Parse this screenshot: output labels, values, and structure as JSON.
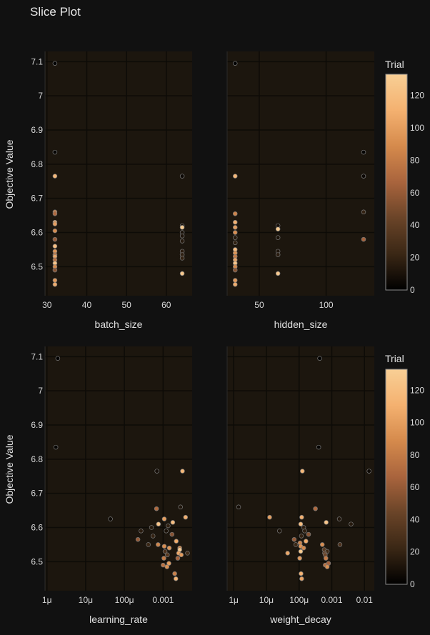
{
  "title": "Slice Plot",
  "y_axis_label": "Objective Value",
  "colorbar": {
    "title": "Trial",
    "range": [
      0,
      133
    ],
    "ticks": [
      0,
      20,
      40,
      60,
      80,
      100,
      120
    ],
    "colorscale": [
      "#000000",
      "#3a2715",
      "#6a4428",
      "#a9643d",
      "#d58a4c",
      "#f4b170",
      "#f8cf95"
    ]
  },
  "chart_data": [
    {
      "type": "scatter",
      "xlabel": "batch_size",
      "ylabel": "Objective Value",
      "xscale": "linear",
      "xlim": [
        29.5,
        66.5
      ],
      "ylim": [
        6.415,
        7.13
      ],
      "xticks": [
        {
          "v": 30,
          "label": "30"
        },
        {
          "v": 40,
          "label": "40"
        },
        {
          "v": 50,
          "label": "50"
        },
        {
          "v": 60,
          "label": "60"
        }
      ],
      "yticks": [
        {
          "v": 6.5,
          "label": "6.5"
        },
        {
          "v": 6.6,
          "label": "6.6"
        },
        {
          "v": 6.7,
          "label": "6.7"
        },
        {
          "v": 6.8,
          "label": "6.8"
        },
        {
          "v": 6.9,
          "label": "6.9"
        },
        {
          "v": 7.0,
          "label": "7"
        },
        {
          "v": 7.1,
          "label": "7.1"
        }
      ],
      "points": [
        {
          "x": 32,
          "y": 7.095,
          "t": 0
        },
        {
          "x": 32,
          "y": 6.835,
          "t": 2
        },
        {
          "x": 32,
          "y": 6.765,
          "t": 115
        },
        {
          "x": 32,
          "y": 6.66,
          "t": 85
        },
        {
          "x": 32,
          "y": 6.655,
          "t": 70
        },
        {
          "x": 32,
          "y": 6.63,
          "t": 110
        },
        {
          "x": 32,
          "y": 6.625,
          "t": 100
        },
        {
          "x": 32,
          "y": 6.605,
          "t": 90
        },
        {
          "x": 32,
          "y": 6.58,
          "t": 60
        },
        {
          "x": 32,
          "y": 6.56,
          "t": 120
        },
        {
          "x": 32,
          "y": 6.545,
          "t": 95
        },
        {
          "x": 32,
          "y": 6.535,
          "t": 80
        },
        {
          "x": 32,
          "y": 6.53,
          "t": 105
        },
        {
          "x": 32,
          "y": 6.52,
          "t": 75
        },
        {
          "x": 32,
          "y": 6.51,
          "t": 125
        },
        {
          "x": 32,
          "y": 6.5,
          "t": 88
        },
        {
          "x": 32,
          "y": 6.49,
          "t": 55
        },
        {
          "x": 32,
          "y": 6.46,
          "t": 98
        },
        {
          "x": 32,
          "y": 6.448,
          "t": 108
        },
        {
          "x": 64,
          "y": 6.765,
          "t": 5
        },
        {
          "x": 64,
          "y": 6.62,
          "t": 8
        },
        {
          "x": 64,
          "y": 6.615,
          "t": 130
        },
        {
          "x": 64,
          "y": 6.6,
          "t": 10
        },
        {
          "x": 64,
          "y": 6.59,
          "t": 12
        },
        {
          "x": 64,
          "y": 6.575,
          "t": 14
        },
        {
          "x": 64,
          "y": 6.545,
          "t": 16
        },
        {
          "x": 64,
          "y": 6.535,
          "t": 18
        },
        {
          "x": 64,
          "y": 6.525,
          "t": 20
        },
        {
          "x": 64,
          "y": 6.48,
          "t": 128
        }
      ]
    },
    {
      "type": "scatter",
      "xlabel": "hidden_size",
      "ylabel": "Objective Value",
      "xscale": "linear",
      "xlim": [
        26,
        136
      ],
      "ylim": [
        6.415,
        7.13
      ],
      "xticks": [
        {
          "v": 50,
          "label": "50"
        },
        {
          "v": 100,
          "label": "100"
        }
      ],
      "yticks": [],
      "points": [
        {
          "x": 32,
          "y": 7.095,
          "t": 0
        },
        {
          "x": 32,
          "y": 6.765,
          "t": 115
        },
        {
          "x": 32,
          "y": 6.655,
          "t": 85
        },
        {
          "x": 32,
          "y": 6.63,
          "t": 110
        },
        {
          "x": 32,
          "y": 6.615,
          "t": 100
        },
        {
          "x": 32,
          "y": 6.6,
          "t": 90
        },
        {
          "x": 32,
          "y": 6.585,
          "t": 14
        },
        {
          "x": 32,
          "y": 6.57,
          "t": 18
        },
        {
          "x": 32,
          "y": 6.55,
          "t": 120
        },
        {
          "x": 32,
          "y": 6.54,
          "t": 95
        },
        {
          "x": 32,
          "y": 6.53,
          "t": 80
        },
        {
          "x": 32,
          "y": 6.52,
          "t": 105
        },
        {
          "x": 32,
          "y": 6.51,
          "t": 125
        },
        {
          "x": 32,
          "y": 6.5,
          "t": 88
        },
        {
          "x": 32,
          "y": 6.49,
          "t": 55
        },
        {
          "x": 32,
          "y": 6.46,
          "t": 98
        },
        {
          "x": 32,
          "y": 6.448,
          "t": 108
        },
        {
          "x": 64,
          "y": 6.62,
          "t": 8
        },
        {
          "x": 64,
          "y": 6.61,
          "t": 130
        },
        {
          "x": 64,
          "y": 6.585,
          "t": 10
        },
        {
          "x": 64,
          "y": 6.545,
          "t": 12
        },
        {
          "x": 64,
          "y": 6.535,
          "t": 16
        },
        {
          "x": 64,
          "y": 6.48,
          "t": 128
        },
        {
          "x": 128,
          "y": 6.835,
          "t": 2
        },
        {
          "x": 128,
          "y": 6.765,
          "t": 5
        },
        {
          "x": 128,
          "y": 6.66,
          "t": 20
        },
        {
          "x": 128,
          "y": 6.58,
          "t": 65
        }
      ]
    },
    {
      "type": "scatter",
      "xlabel": "learning_rate",
      "ylabel": "Objective Value",
      "xscale": "log",
      "xlim": [
        -6.05,
        -2.25
      ],
      "ylim": [
        6.415,
        7.13
      ],
      "xticks": [
        {
          "v": -6,
          "label": "1μ"
        },
        {
          "v": -5,
          "label": "10μ"
        },
        {
          "v": -4,
          "label": "100μ"
        },
        {
          "v": -3,
          "label": "0.001"
        }
      ],
      "yticks": [
        {
          "v": 6.5,
          "label": "6.5"
        },
        {
          "v": 6.6,
          "label": "6.6"
        },
        {
          "v": 6.7,
          "label": "6.7"
        },
        {
          "v": 6.8,
          "label": "6.8"
        },
        {
          "v": 6.9,
          "label": "6.9"
        },
        {
          "v": 7.0,
          "label": "7"
        },
        {
          "v": 7.1,
          "label": "7.1"
        }
      ],
      "points": [
        {
          "x": -5.72,
          "y": 7.095,
          "t": 0
        },
        {
          "x": -5.77,
          "y": 6.835,
          "t": 2
        },
        {
          "x": -4.36,
          "y": 6.625,
          "t": 5
        },
        {
          "x": -3.16,
          "y": 6.765,
          "t": 8
        },
        {
          "x": -2.5,
          "y": 6.765,
          "t": 115
        },
        {
          "x": -2.55,
          "y": 6.66,
          "t": 12
        },
        {
          "x": -3.17,
          "y": 6.655,
          "t": 70
        },
        {
          "x": -2.42,
          "y": 6.63,
          "t": 110
        },
        {
          "x": -2.97,
          "y": 6.625,
          "t": 100
        },
        {
          "x": -2.75,
          "y": 6.615,
          "t": 120
        },
        {
          "x": -3.12,
          "y": 6.61,
          "t": 125
        },
        {
          "x": -2.87,
          "y": 6.605,
          "t": 18
        },
        {
          "x": -3.3,
          "y": 6.6,
          "t": 14
        },
        {
          "x": -3.57,
          "y": 6.59,
          "t": 16
        },
        {
          "x": -2.92,
          "y": 6.59,
          "t": 10
        },
        {
          "x": -2.77,
          "y": 6.58,
          "t": 55
        },
        {
          "x": -3.26,
          "y": 6.575,
          "t": 20
        },
        {
          "x": -3.65,
          "y": 6.565,
          "t": 60
        },
        {
          "x": -2.66,
          "y": 6.56,
          "t": 108
        },
        {
          "x": -3.38,
          "y": 6.55,
          "t": 22
        },
        {
          "x": -3.13,
          "y": 6.55,
          "t": 85
        },
        {
          "x": -2.97,
          "y": 6.545,
          "t": 90
        },
        {
          "x": -2.84,
          "y": 6.54,
          "t": 95
        },
        {
          "x": -2.57,
          "y": 6.54,
          "t": 88
        },
        {
          "x": -2.57,
          "y": 6.535,
          "t": 130
        },
        {
          "x": -2.95,
          "y": 6.53,
          "t": 30
        },
        {
          "x": -2.37,
          "y": 6.525,
          "t": 25
        },
        {
          "x": -2.6,
          "y": 6.525,
          "t": 105
        },
        {
          "x": -2.89,
          "y": 6.52,
          "t": 35
        },
        {
          "x": -2.53,
          "y": 6.52,
          "t": 98
        },
        {
          "x": -2.98,
          "y": 6.51,
          "t": 80
        },
        {
          "x": -2.62,
          "y": 6.51,
          "t": 65
        },
        {
          "x": -2.85,
          "y": 6.495,
          "t": 100
        },
        {
          "x": -3.0,
          "y": 6.49,
          "t": 75
        },
        {
          "x": -2.9,
          "y": 6.485,
          "t": 92
        },
        {
          "x": -2.7,
          "y": 6.465,
          "t": 83
        },
        {
          "x": -2.67,
          "y": 6.45,
          "t": 112
        }
      ]
    },
    {
      "type": "scatter",
      "xlabel": "weight_decay",
      "ylabel": "Objective Value",
      "xscale": "log",
      "xlim": [
        -6.2,
        -1.7
      ],
      "ylim": [
        6.415,
        7.13
      ],
      "xticks": [
        {
          "v": -6,
          "label": "1μ"
        },
        {
          "v": -5,
          "label": "10μ"
        },
        {
          "v": -4,
          "label": "100μ"
        },
        {
          "v": -3,
          "label": "0.001"
        },
        {
          "v": -2,
          "label": "0.01"
        }
      ],
      "yticks": [],
      "points": [
        {
          "x": -3.37,
          "y": 7.095,
          "t": 0
        },
        {
          "x": -3.4,
          "y": 6.835,
          "t": 2
        },
        {
          "x": -1.86,
          "y": 6.765,
          "t": 5
        },
        {
          "x": -3.9,
          "y": 6.765,
          "t": 115
        },
        {
          "x": -5.85,
          "y": 6.66,
          "t": 8
        },
        {
          "x": -3.5,
          "y": 6.655,
          "t": 70
        },
        {
          "x": -4.9,
          "y": 6.63,
          "t": 100
        },
        {
          "x": -3.92,
          "y": 6.63,
          "t": 110
        },
        {
          "x": -2.77,
          "y": 6.625,
          "t": 12
        },
        {
          "x": -3.17,
          "y": 6.615,
          "t": 125
        },
        {
          "x": -3.95,
          "y": 6.61,
          "t": 120
        },
        {
          "x": -2.41,
          "y": 6.61,
          "t": 14
        },
        {
          "x": -3.86,
          "y": 6.6,
          "t": 16
        },
        {
          "x": -4.6,
          "y": 6.59,
          "t": 10
        },
        {
          "x": -3.83,
          "y": 6.59,
          "t": 18
        },
        {
          "x": -3.71,
          "y": 6.58,
          "t": 55
        },
        {
          "x": -3.93,
          "y": 6.575,
          "t": 20
        },
        {
          "x": -4.15,
          "y": 6.565,
          "t": 60
        },
        {
          "x": -3.79,
          "y": 6.56,
          "t": 108
        },
        {
          "x": -3.97,
          "y": 6.555,
          "t": 85
        },
        {
          "x": -4.1,
          "y": 6.55,
          "t": 22
        },
        {
          "x": -2.75,
          "y": 6.55,
          "t": 30
        },
        {
          "x": -3.29,
          "y": 6.55,
          "t": 90
        },
        {
          "x": -3.95,
          "y": 6.545,
          "t": 95
        },
        {
          "x": -3.86,
          "y": 6.54,
          "t": 88
        },
        {
          "x": -3.23,
          "y": 6.535,
          "t": 35
        },
        {
          "x": -3.14,
          "y": 6.53,
          "t": 25
        },
        {
          "x": -3.95,
          "y": 6.53,
          "t": 130
        },
        {
          "x": -4.35,
          "y": 6.525,
          "t": 105
        },
        {
          "x": -3.22,
          "y": 6.525,
          "t": 40
        },
        {
          "x": -3.2,
          "y": 6.52,
          "t": 45
        },
        {
          "x": -3.98,
          "y": 6.51,
          "t": 98
        },
        {
          "x": -3.18,
          "y": 6.51,
          "t": 80
        },
        {
          "x": -3.1,
          "y": 6.495,
          "t": 65
        },
        {
          "x": -3.2,
          "y": 6.49,
          "t": 75
        },
        {
          "x": -3.14,
          "y": 6.485,
          "t": 92
        },
        {
          "x": -3.94,
          "y": 6.465,
          "t": 112
        },
        {
          "x": -3.92,
          "y": 6.45,
          "t": 103
        }
      ]
    }
  ]
}
